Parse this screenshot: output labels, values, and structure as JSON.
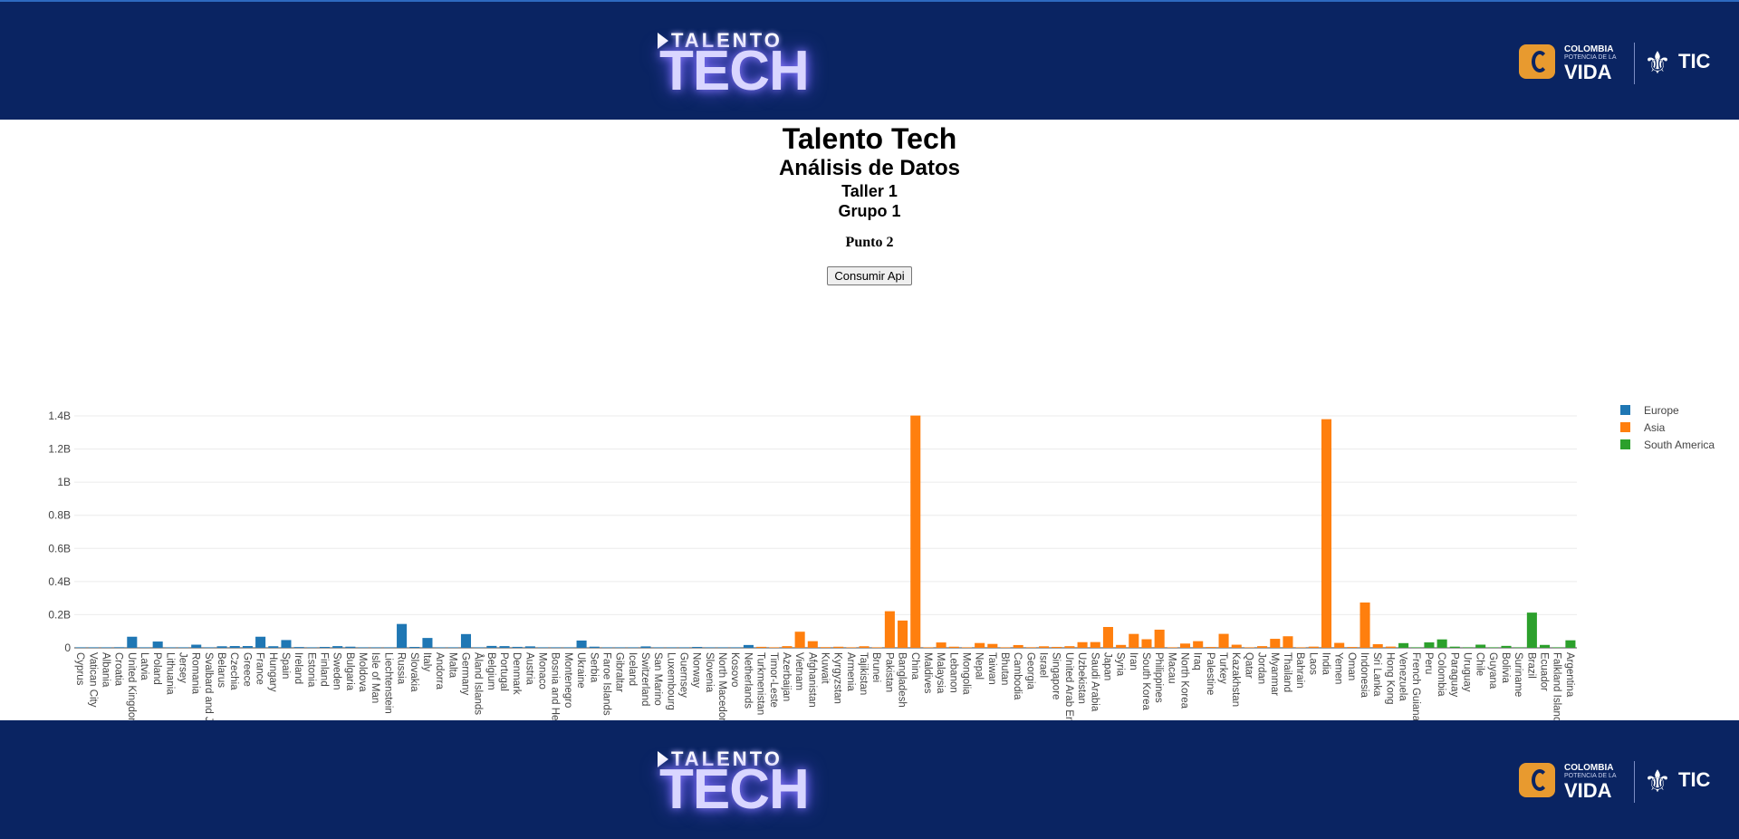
{
  "branding": {
    "logo_small": "TALENTO",
    "logo_big": "TECH",
    "gov_line1": "COLOMBIA",
    "gov_line2": "POTENCIA DE LA",
    "gov_line3": "VIDA",
    "gov_tic": "TIC"
  },
  "headings": {
    "title": "Talento Tech",
    "subtitle": "Análisis de Datos",
    "workshop": "Taller 1",
    "group": "Grupo 1",
    "point": "Punto 2"
  },
  "button": {
    "label": "Consumir Api"
  },
  "colors": {
    "Europe": "#1f77b4",
    "Asia": "#ff7f0e",
    "South America": "#2ca02c",
    "banner": "#0a2462"
  },
  "chart_data": {
    "type": "bar",
    "ylabel": "",
    "xlabel": "",
    "ylim": [
      0,
      1400000000
    ],
    "yticks": [
      {
        "value": 0,
        "label": "0"
      },
      {
        "value": 200000000,
        "label": "0.2B"
      },
      {
        "value": 400000000,
        "label": "0.4B"
      },
      {
        "value": 600000000,
        "label": "0.6B"
      },
      {
        "value": 800000000,
        "label": "0.8B"
      },
      {
        "value": 1000000000,
        "label": "1B"
      },
      {
        "value": 1200000000,
        "label": "1.2B"
      },
      {
        "value": 1400000000,
        "label": "1.4B"
      }
    ],
    "grid": true,
    "legend_position": "right",
    "series": [
      {
        "name": "Europe",
        "color": "#1f77b4",
        "bars": [
          {
            "x": "Cyprus",
            "y": 1200000
          },
          {
            "x": "Vatican City",
            "y": 800
          },
          {
            "x": "Albania",
            "y": 2800000
          },
          {
            "x": "Croatia",
            "y": 3900000
          },
          {
            "x": "United Kingdom",
            "y": 67000000
          },
          {
            "x": "Latvia",
            "y": 1900000
          },
          {
            "x": "Poland",
            "y": 38000000
          },
          {
            "x": "Lithuania",
            "y": 2800000
          },
          {
            "x": "Jersey",
            "y": 100000
          },
          {
            "x": "Romania",
            "y": 19000000
          },
          {
            "x": "Svalbard and Jan Mayen",
            "y": 2500
          },
          {
            "x": "Belarus",
            "y": 9400000
          },
          {
            "x": "Czechia",
            "y": 10700000
          },
          {
            "x": "Greece",
            "y": 10700000
          },
          {
            "x": "France",
            "y": 67000000
          },
          {
            "x": "Hungary",
            "y": 9700000
          },
          {
            "x": "Spain",
            "y": 47000000
          },
          {
            "x": "Ireland",
            "y": 4900000
          },
          {
            "x": "Estonia",
            "y": 1300000
          },
          {
            "x": "Finland",
            "y": 5500000
          },
          {
            "x": "Sweden",
            "y": 10300000
          },
          {
            "x": "Bulgaria",
            "y": 6900000
          },
          {
            "x": "Moldova",
            "y": 2600000
          },
          {
            "x": "Isle of Man",
            "y": 85000
          },
          {
            "x": "Liechtenstein",
            "y": 38000
          },
          {
            "x": "Russia",
            "y": 144000000
          },
          {
            "x": "Slovakia",
            "y": 5400000
          },
          {
            "x": "Italy",
            "y": 59500000
          },
          {
            "x": "Andorra",
            "y": 77000
          },
          {
            "x": "Malta",
            "y": 515000
          },
          {
            "x": "Germany",
            "y": 83000000
          },
          {
            "x": "Åland Islands",
            "y": 29000
          },
          {
            "x": "Belgium",
            "y": 11500000
          },
          {
            "x": "Portugal",
            "y": 10300000
          },
          {
            "x": "Denmark",
            "y": 5800000
          },
          {
            "x": "Austria",
            "y": 8900000
          },
          {
            "x": "Monaco",
            "y": 39000
          },
          {
            "x": "Bosnia and Herzegovina",
            "y": 3300000
          },
          {
            "x": "Montenegro",
            "y": 620000
          },
          {
            "x": "Ukraine",
            "y": 44000000
          },
          {
            "x": "Serbia",
            "y": 6900000
          },
          {
            "x": "Faroe Islands",
            "y": 49000
          },
          {
            "x": "Gibraltar",
            "y": 34000
          },
          {
            "x": "Iceland",
            "y": 370000
          },
          {
            "x": "Switzerland",
            "y": 8600000
          },
          {
            "x": "San Marino",
            "y": 34000
          },
          {
            "x": "Luxembourg",
            "y": 630000
          },
          {
            "x": "Guernsey",
            "y": 63000
          },
          {
            "x": "Norway",
            "y": 5400000
          },
          {
            "x": "Slovenia",
            "y": 2100000
          },
          {
            "x": "North Macedonia",
            "y": 2100000
          },
          {
            "x": "Kosovo",
            "y": 1800000
          },
          {
            "x": "Netherlands",
            "y": 17100000
          }
        ]
      },
      {
        "name": "Asia",
        "color": "#ff7f0e",
        "bars": [
          {
            "x": "Turkmenistan",
            "y": 6000000
          },
          {
            "x": "Timor-Leste",
            "y": 1300000
          },
          {
            "x": "Azerbaijan",
            "y": 10100000
          },
          {
            "x": "Vietnam",
            "y": 97300000
          },
          {
            "x": "Afghanistan",
            "y": 40200000
          },
          {
            "x": "Kuwait",
            "y": 4300000
          },
          {
            "x": "Kyrgyzstan",
            "y": 6600000
          },
          {
            "x": "Armenia",
            "y": 2960000
          },
          {
            "x": "Tajikistan",
            "y": 9500000
          },
          {
            "x": "Brunei",
            "y": 437000
          },
          {
            "x": "Pakistan",
            "y": 220900000
          },
          {
            "x": "Bangladesh",
            "y": 164700000
          },
          {
            "x": "China",
            "y": 1402000000
          },
          {
            "x": "Maldives",
            "y": 540000
          },
          {
            "x": "Malaysia",
            "y": 32400000
          },
          {
            "x": "Lebanon",
            "y": 6800000
          },
          {
            "x": "Mongolia",
            "y": 3300000
          },
          {
            "x": "Nepal",
            "y": 29100000
          },
          {
            "x": "Taiwan",
            "y": 23500000
          },
          {
            "x": "Bhutan",
            "y": 770000
          },
          {
            "x": "Cambodia",
            "y": 16700000
          },
          {
            "x": "Georgia",
            "y": 3700000
          },
          {
            "x": "Israel",
            "y": 9200000
          },
          {
            "x": "Singapore",
            "y": 5700000
          },
          {
            "x": "United Arab Emirates",
            "y": 9900000
          },
          {
            "x": "Uzbekistan",
            "y": 34200000
          },
          {
            "x": "Saudi Arabia",
            "y": 34800000
          },
          {
            "x": "Japan",
            "y": 125800000
          },
          {
            "x": "Syria",
            "y": 17500000
          },
          {
            "x": "Iran",
            "y": 83900000
          },
          {
            "x": "South Korea",
            "y": 51800000
          },
          {
            "x": "Philippines",
            "y": 109600000
          },
          {
            "x": "Macau",
            "y": 650000
          },
          {
            "x": "North Korea",
            "y": 25800000
          },
          {
            "x": "Iraq",
            "y": 40200000
          },
          {
            "x": "Palestine",
            "y": 5100000
          },
          {
            "x": "Turkey",
            "y": 84300000
          },
          {
            "x": "Kazakhstan",
            "y": 18800000
          },
          {
            "x": "Qatar",
            "y": 2900000
          },
          {
            "x": "Jordan",
            "y": 10200000
          },
          {
            "x": "Myanmar",
            "y": 54400000
          },
          {
            "x": "Thailand",
            "y": 69800000
          },
          {
            "x": "Bahrain",
            "y": 1700000
          },
          {
            "x": "Laos",
            "y": 7300000
          },
          {
            "x": "India",
            "y": 1380000000
          },
          {
            "x": "Yemen",
            "y": 29800000
          },
          {
            "x": "Oman",
            "y": 5100000
          },
          {
            "x": "Indonesia",
            "y": 273500000
          },
          {
            "x": "Sri Lanka",
            "y": 21900000
          },
          {
            "x": "Hong Kong",
            "y": 7500000
          }
        ]
      },
      {
        "name": "South America",
        "color": "#2ca02c",
        "bars": [
          {
            "x": "Venezuela",
            "y": 28400000
          },
          {
            "x": "French Guiana",
            "y": 254000
          },
          {
            "x": "Peru",
            "y": 33000000
          },
          {
            "x": "Colombia",
            "y": 50900000
          },
          {
            "x": "Paraguay",
            "y": 7100000
          },
          {
            "x": "Uruguay",
            "y": 3500000
          },
          {
            "x": "Chile",
            "y": 19100000
          },
          {
            "x": "Guyana",
            "y": 787000
          },
          {
            "x": "Bolivia",
            "y": 11700000
          },
          {
            "x": "Suriname",
            "y": 587000
          },
          {
            "x": "Brazil",
            "y": 212600000
          },
          {
            "x": "Ecuador",
            "y": 17600000
          },
          {
            "x": "Falkland Islands",
            "y": 2600
          },
          {
            "x": "Argentina",
            "y": 45400000
          }
        ]
      }
    ]
  }
}
